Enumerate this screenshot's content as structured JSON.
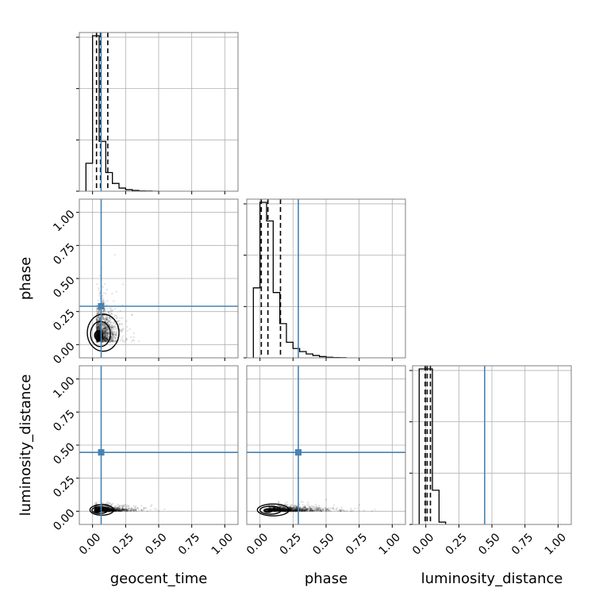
{
  "chart_data": {
    "type": "corner",
    "parameters": [
      "geocent_time",
      "phase",
      "luminosity_distance"
    ],
    "xlabels": [
      "geocent_time",
      "phase",
      "luminosity_distance"
    ],
    "ylabels": [
      "",
      "phase",
      "luminosity_distance"
    ],
    "axis_range": [
      -0.1,
      1.1
    ],
    "ticks": [
      0.0,
      0.25,
      0.5,
      0.75,
      1.0
    ],
    "tick_labels": [
      "0.00",
      "0.25",
      "0.50",
      "0.75",
      "1.00"
    ],
    "grid": true,
    "truth_color": "#4682b4",
    "truths": {
      "geocent_time": 0.065,
      "phase": 0.29,
      "luminosity_distance": 0.445
    },
    "histograms": [
      {
        "parameter": "geocent_time",
        "bin_edges": [
          -0.05,
          0.0,
          0.05,
          0.1,
          0.15,
          0.2,
          0.25,
          0.3,
          0.35,
          0.4,
          0.45,
          0.5
        ],
        "counts": [
          0.18,
          1.0,
          0.32,
          0.12,
          0.05,
          0.02,
          0.01,
          0.005,
          0.002,
          0.001,
          0.0
        ],
        "quantiles": [
          0.03,
          0.06,
          0.115
        ]
      },
      {
        "parameter": "phase",
        "bin_edges": [
          -0.05,
          0.0,
          0.05,
          0.1,
          0.15,
          0.2,
          0.25,
          0.3,
          0.35,
          0.4,
          0.45,
          0.5,
          0.55,
          0.6,
          0.65
        ],
        "counts": [
          0.45,
          1.0,
          0.88,
          0.42,
          0.22,
          0.1,
          0.06,
          0.04,
          0.025,
          0.015,
          0.008,
          0.004,
          0.002,
          0.001
        ],
        "quantiles": [
          0.01,
          0.06,
          0.155
        ]
      },
      {
        "parameter": "luminosity_distance",
        "bin_edges": [
          -0.05,
          0.0,
          0.05,
          0.1,
          0.15
        ],
        "counts": [
          1.0,
          1.0,
          0.22,
          0.015
        ],
        "quantiles": [
          -0.005,
          0.01,
          0.035
        ]
      }
    ],
    "scatter_panels": [
      {
        "x": "geocent_time",
        "y": "phase",
        "density": {
          "cx": 0.05,
          "cy": 0.06,
          "sx": 0.06,
          "sy": 0.1
        },
        "contours": [
          {
            "cx": 0.045,
            "cy": 0.07,
            "rx": 0.03,
            "ry": 0.035
          },
          {
            "cx": 0.06,
            "cy": 0.08,
            "rx": 0.075,
            "ry": 0.095
          },
          {
            "cx": 0.08,
            "cy": 0.09,
            "rx": 0.12,
            "ry": 0.14
          }
        ]
      },
      {
        "x": "geocent_time",
        "y": "luminosity_distance",
        "density": {
          "cx": 0.05,
          "cy": 0.005,
          "sx": 0.1,
          "sy": 0.015
        },
        "contours": [
          {
            "cx": 0.04,
            "cy": 0.005,
            "rx": 0.025,
            "ry": 0.012
          },
          {
            "cx": 0.055,
            "cy": 0.008,
            "rx": 0.06,
            "ry": 0.025
          },
          {
            "cx": 0.07,
            "cy": 0.01,
            "rx": 0.09,
            "ry": 0.04
          }
        ]
      },
      {
        "x": "phase",
        "y": "luminosity_distance",
        "density": {
          "cx": 0.12,
          "cy": 0.005,
          "sx": 0.16,
          "sy": 0.015
        },
        "contours": [
          {
            "cx": 0.06,
            "cy": 0.005,
            "rx": 0.03,
            "ry": 0.014
          },
          {
            "cx": 0.08,
            "cy": 0.008,
            "rx": 0.08,
            "ry": 0.03
          },
          {
            "cx": 0.1,
            "cy": 0.01,
            "rx": 0.12,
            "ry": 0.045
          }
        ]
      }
    ]
  }
}
